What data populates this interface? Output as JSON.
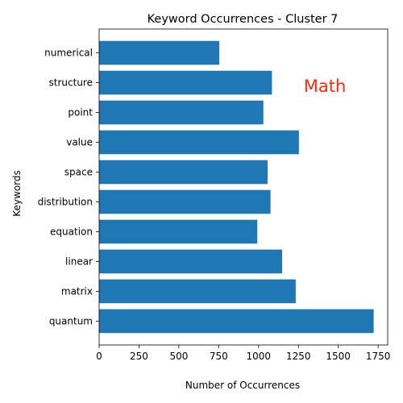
{
  "chart_data": {
    "type": "bar",
    "orientation": "horizontal",
    "title": "Keyword Occurrences - Cluster 7",
    "xlabel": "Number of Occurrences",
    "ylabel": "Keywords",
    "categories": [
      "quantum",
      "matrix",
      "linear",
      "equation",
      "distribution",
      "space",
      "value",
      "point",
      "structure",
      "numerical"
    ],
    "values": [
      1722,
      1233,
      1148,
      992,
      1075,
      1057,
      1253,
      1030,
      1084,
      754
    ],
    "xlim": [
      0,
      1810
    ],
    "xticks": [
      0,
      250,
      500,
      750,
      1000,
      1250,
      1500,
      1750
    ],
    "grid": false,
    "bar_color": "#1f77b4",
    "annotation": {
      "text": "Math",
      "color": "#ff2a0a"
    }
  }
}
